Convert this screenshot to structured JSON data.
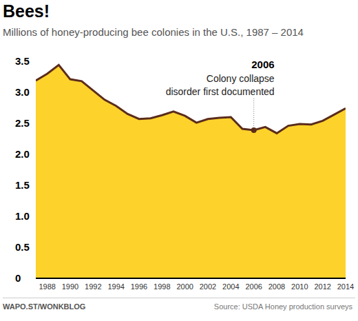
{
  "chart_data": {
    "type": "area",
    "title": "Bees!",
    "subtitle": "Millions of honey-producing bee colonies in the U.S., 1987 – 2014",
    "x": [
      1987,
      1988,
      1989,
      1990,
      1991,
      1992,
      1993,
      1994,
      1995,
      1996,
      1997,
      1998,
      1999,
      2000,
      2001,
      2002,
      2003,
      2004,
      2005,
      2006,
      2007,
      2008,
      2009,
      2010,
      2011,
      2012,
      2013,
      2014
    ],
    "values": [
      3.19,
      3.3,
      3.44,
      3.21,
      3.18,
      3.03,
      2.88,
      2.78,
      2.65,
      2.57,
      2.58,
      2.63,
      2.69,
      2.62,
      2.51,
      2.57,
      2.59,
      2.6,
      2.41,
      2.39,
      2.44,
      2.34,
      2.46,
      2.49,
      2.48,
      2.54,
      2.64,
      2.74
    ],
    "color": "#fdd22b",
    "xlim": [
      1987,
      2014
    ],
    "xticks": [
      1988,
      1990,
      1992,
      1994,
      1996,
      1998,
      2000,
      2002,
      2004,
      2006,
      2008,
      2010,
      2012,
      2014
    ],
    "ylim": [
      0,
      3.5
    ],
    "yticks": [
      0,
      0.5,
      {
        "value": 1,
        "label": "1.0"
      },
      1.5,
      {
        "value": 2,
        "label": "2.0"
      },
      2.5,
      {
        "value": 3,
        "label": "3.0"
      },
      3.5
    ],
    "grid": false,
    "annotations": [
      {
        "x": 2006,
        "y": 2.39,
        "title": "2006",
        "text": [
          "Colony collapse",
          "disorder first documented"
        ]
      }
    ],
    "credit": "WAPO.ST/WONKBLOG",
    "source": "Source: USDA Honey production surveys"
  }
}
